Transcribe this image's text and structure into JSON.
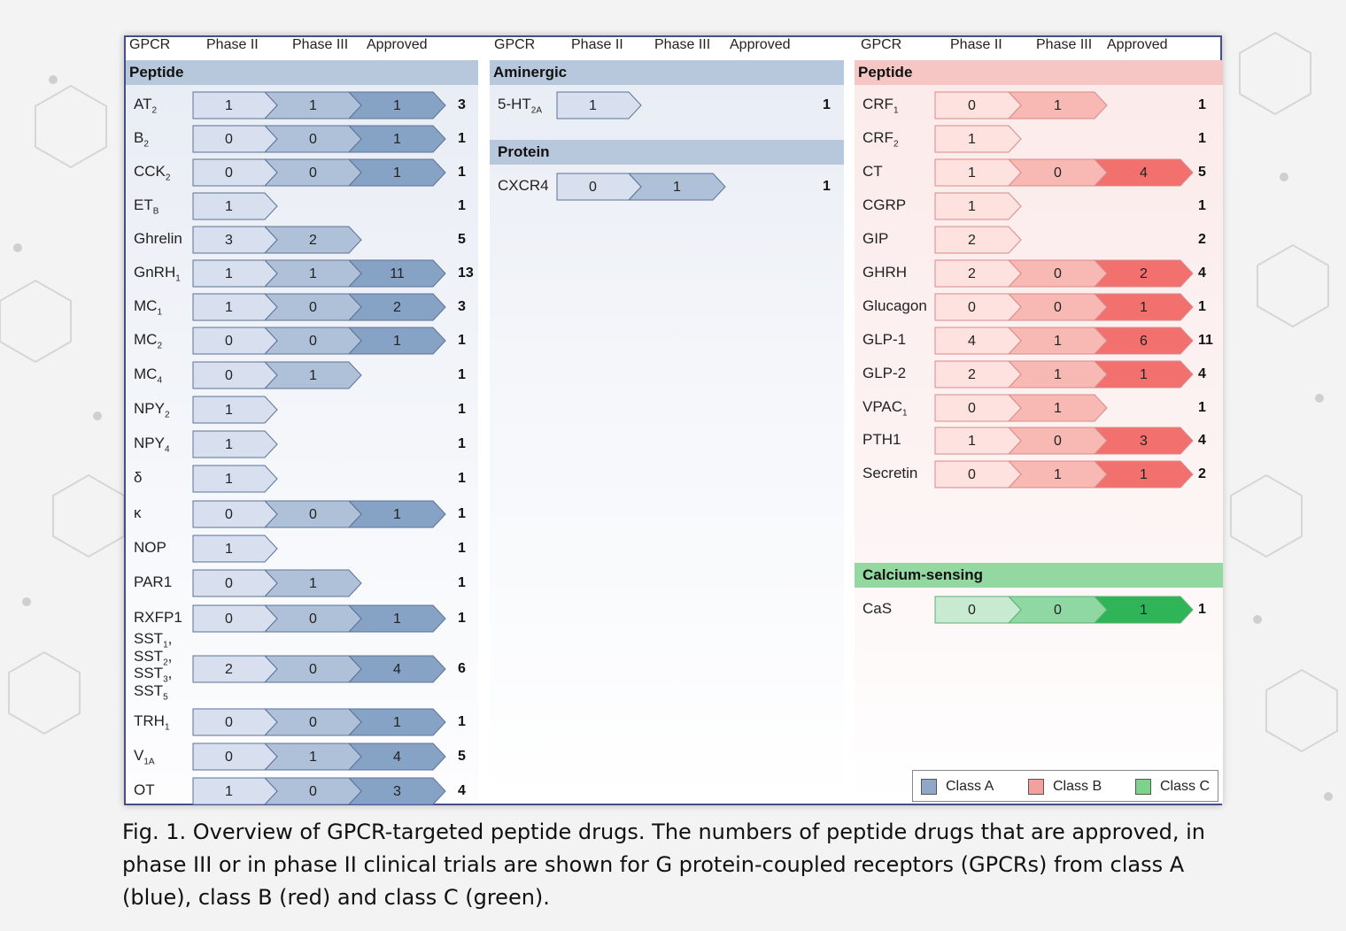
{
  "headers": {
    "gpcr": "GPCR",
    "phase2": "Phase II",
    "phase3": "Phase III",
    "approved": "Approved"
  },
  "left": {
    "category": "Peptide",
    "rows": [
      {
        "name": "AT",
        "sub": "2",
        "p2": "1",
        "p3": "1",
        "ap": "1",
        "total": "3"
      },
      {
        "name": "B",
        "sub": "2",
        "p2": "0",
        "p3": "0",
        "ap": "1",
        "total": "1"
      },
      {
        "name": "CCK",
        "sub": "2",
        "p2": "0",
        "p3": "0",
        "ap": "1",
        "total": "1"
      },
      {
        "name": "ET",
        "sub": "B",
        "p2": "1",
        "p3": "",
        "ap": "",
        "total": "1"
      },
      {
        "name": "Ghrelin",
        "sub": "",
        "p2": "3",
        "p3": "2",
        "ap": "",
        "total": "5"
      },
      {
        "name": "GnRH",
        "sub": "1",
        "p2": "1",
        "p3": "1",
        "ap": "11",
        "total": "13"
      },
      {
        "name": "MC",
        "sub": "1",
        "p2": "1",
        "p3": "0",
        "ap": "2",
        "total": "3"
      },
      {
        "name": "MC",
        "sub": "2",
        "p2": "0",
        "p3": "0",
        "ap": "1",
        "total": "1"
      },
      {
        "name": "MC",
        "sub": "4",
        "p2": "0",
        "p3": "1",
        "ap": "",
        "total": "1"
      },
      {
        "name": "NPY",
        "sub": "2",
        "p2": "1",
        "p3": "",
        "ap": "",
        "total": "1"
      },
      {
        "name": "NPY",
        "sub": "4",
        "p2": "1",
        "p3": "",
        "ap": "",
        "total": "1"
      },
      {
        "name": "δ",
        "sub": "",
        "p2": "1",
        "p3": "",
        "ap": "",
        "total": "1"
      },
      {
        "name": "κ",
        "sub": "",
        "p2": "0",
        "p3": "0",
        "ap": "1",
        "total": "1"
      },
      {
        "name": "NOP",
        "sub": "",
        "p2": "1",
        "p3": "",
        "ap": "",
        "total": "1"
      },
      {
        "name": "PAR1",
        "sub": "",
        "p2": "0",
        "p3": "1",
        "ap": "",
        "total": "1"
      },
      {
        "name": "RXFP1",
        "sub": "",
        "p2": "0",
        "p3": "0",
        "ap": "1",
        "total": "1"
      },
      {
        "name": "SST",
        "sub": "",
        "p2": "2",
        "p3": "0",
        "ap": "4",
        "total": "6",
        "multi": [
          {
            "name": "SST",
            "sub": "1",
            "sep": ","
          },
          {
            "name": "SST",
            "sub": "2",
            "sep": ","
          },
          {
            "name": "SST",
            "sub": "3",
            "sep": ","
          },
          {
            "name": "SST",
            "sub": "5",
            "sep": ""
          }
        ]
      },
      {
        "name": "TRH",
        "sub": "1",
        "p2": "0",
        "p3": "0",
        "ap": "1",
        "total": "1"
      },
      {
        "name": "V",
        "sub": "1A",
        "p2": "0",
        "p3": "1",
        "ap": "4",
        "total": "5"
      },
      {
        "name": "OT",
        "sub": "",
        "p2": "1",
        "p3": "0",
        "ap": "3",
        "total": "4"
      }
    ]
  },
  "middle": {
    "sections": [
      {
        "category": "Aminergic",
        "rows": [
          {
            "name": "5-HT",
            "sub": "2A",
            "p2": "1",
            "p3": "",
            "ap": "",
            "total": "1"
          }
        ]
      },
      {
        "category": "Protein",
        "rows": [
          {
            "name": "CXCR4",
            "sub": "",
            "p2": "0",
            "p3": "1",
            "ap": "",
            "total": "1"
          }
        ]
      }
    ]
  },
  "right": {
    "category": "Peptide",
    "rows": [
      {
        "name": "CRF",
        "sub": "1",
        "p2": "0",
        "p3": "1",
        "ap": "",
        "total": "1"
      },
      {
        "name": "CRF",
        "sub": "2",
        "p2": "1",
        "p3": "",
        "ap": "",
        "total": "1"
      },
      {
        "name": "CT",
        "sub": "",
        "p2": "1",
        "p3": "0",
        "ap": "4",
        "total": "5"
      },
      {
        "name": "CGRP",
        "sub": "",
        "p2": "1",
        "p3": "",
        "ap": "",
        "total": "1"
      },
      {
        "name": "GIP",
        "sub": "",
        "p2": "2",
        "p3": "",
        "ap": "",
        "total": "2"
      },
      {
        "name": "GHRH",
        "sub": "",
        "p2": "2",
        "p3": "0",
        "ap": "2",
        "total": "4"
      },
      {
        "name": "Glucagon",
        "sub": "",
        "p2": "0",
        "p3": "0",
        "ap": "1",
        "total": "1"
      },
      {
        "name": "GLP-1",
        "sub": "",
        "p2": "4",
        "p3": "1",
        "ap": "6",
        "total": "11"
      },
      {
        "name": "GLP-2",
        "sub": "",
        "p2": "2",
        "p3": "1",
        "ap": "1",
        "total": "4"
      },
      {
        "name": "VPAC",
        "sub": "1",
        "p2": "0",
        "p3": "1",
        "ap": "",
        "total": "1"
      },
      {
        "name": "PTH1",
        "sub": "",
        "p2": "1",
        "p3": "0",
        "ap": "3",
        "total": "4"
      },
      {
        "name": "Secretin",
        "sub": "",
        "p2": "0",
        "p3": "1",
        "ap": "1",
        "total": "2"
      }
    ],
    "category2": "Calcium-sensing",
    "rows2": [
      {
        "name": "CaS",
        "sub": "",
        "p2": "0",
        "p3": "0",
        "ap": "1",
        "total": "1"
      }
    ]
  },
  "legend": [
    {
      "label": "Class A",
      "color": "#8fa8c8"
    },
    {
      "label": "Class B",
      "color": "#f4a09e"
    },
    {
      "label": "Class C",
      "color": "#7dd389"
    }
  ],
  "colors": {
    "A": [
      "#d8e0f0",
      "#aec1d9",
      "#86a3c6"
    ],
    "B": [
      "#fde2df",
      "#f8b9b4",
      "#f2706e"
    ],
    "C": [
      "#c7ead0",
      "#8fd8a3",
      "#2fb457"
    ]
  },
  "caption": "Fig. 1. Overview of GPCR-targeted peptide drugs. The numbers of peptide drugs that are approved, in phase III or in phase II clinical trials are shown for G protein-coupled receptors (GPCRs) from class A (blue), class B (red) and class C (green)."
}
